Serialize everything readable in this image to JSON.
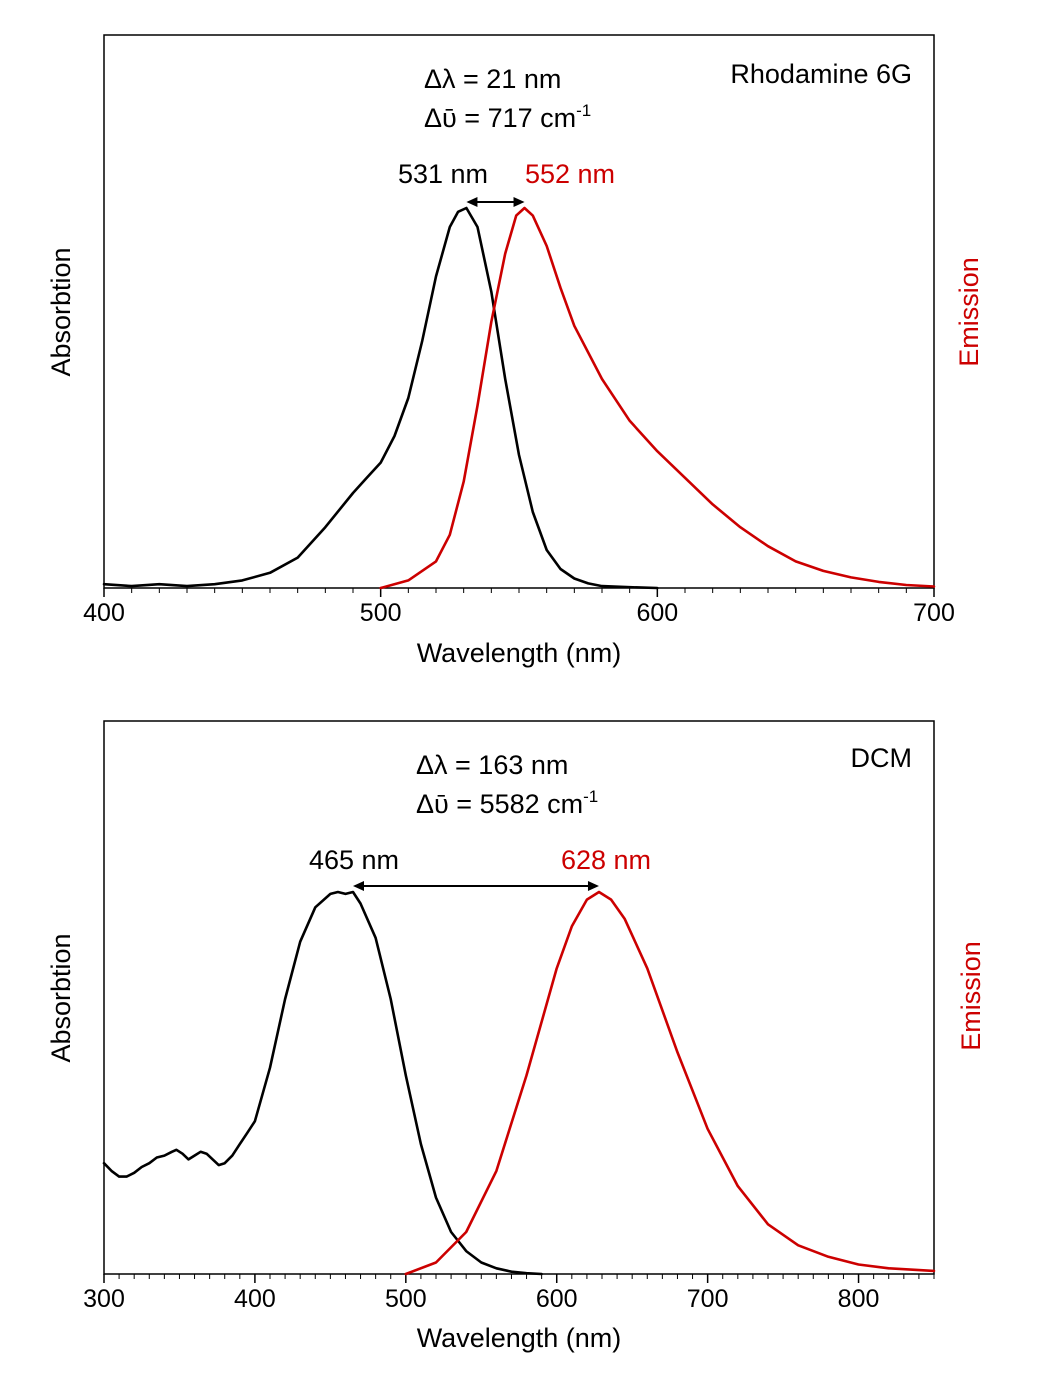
{
  "colors": {
    "absorption": "#000000",
    "emission": "#cc0000",
    "axis": "#000000"
  },
  "chart_data": [
    {
      "type": "line",
      "title": "",
      "sample_label": "Rhodamine 6G",
      "xlabel": "Wavelength (nm)",
      "ylabel_left": "Absorbtion",
      "ylabel_right": "Emission",
      "xlim": [
        400,
        700
      ],
      "ylim": [
        0,
        1
      ],
      "xticks": [
        400,
        500,
        600,
        700
      ],
      "y_scale": "arbitrary units, no tick labels",
      "grid": false,
      "annotation": {
        "delta_lambda": "Δλ = 21 nm",
        "delta_nu_prefix": "Δῡ = 717 cm",
        "delta_nu_exp": "-1"
      },
      "peaks": [
        {
          "label": "531 nm",
          "x": 531,
          "series": "absorption"
        },
        {
          "label": "552 nm",
          "x": 552,
          "series": "emission"
        }
      ],
      "series": [
        {
          "key": "absorption",
          "color": "#000000",
          "x": [
            400,
            410,
            420,
            430,
            440,
            450,
            460,
            470,
            480,
            490,
            495,
            500,
            505,
            510,
            515,
            520,
            525,
            528,
            531,
            535,
            540,
            545,
            550,
            555,
            560,
            565,
            570,
            575,
            580,
            590,
            600
          ],
          "y": [
            0.01,
            0.005,
            0.01,
            0.005,
            0.01,
            0.02,
            0.04,
            0.08,
            0.16,
            0.25,
            0.29,
            0.33,
            0.4,
            0.5,
            0.65,
            0.82,
            0.95,
            0.99,
            1.0,
            0.95,
            0.78,
            0.55,
            0.35,
            0.2,
            0.1,
            0.05,
            0.025,
            0.012,
            0.005,
            0.002,
            0.0
          ]
        },
        {
          "key": "emission",
          "color": "#cc0000",
          "x": [
            500,
            510,
            520,
            525,
            530,
            535,
            540,
            545,
            549,
            552,
            555,
            560,
            565,
            570,
            580,
            590,
            600,
            610,
            620,
            630,
            640,
            650,
            660,
            670,
            680,
            690,
            700
          ],
          "y": [
            0.0,
            0.02,
            0.07,
            0.14,
            0.28,
            0.48,
            0.7,
            0.88,
            0.98,
            1.0,
            0.98,
            0.9,
            0.79,
            0.69,
            0.55,
            0.44,
            0.36,
            0.29,
            0.22,
            0.16,
            0.11,
            0.07,
            0.045,
            0.028,
            0.016,
            0.008,
            0.004
          ]
        }
      ]
    },
    {
      "type": "line",
      "title": "",
      "sample_label": "DCM",
      "xlabel": "Wavelength (nm)",
      "ylabel_left": "Absorbtion",
      "ylabel_right": "Emission",
      "xlim": [
        300,
        850
      ],
      "ylim": [
        0,
        1
      ],
      "xticks": [
        300,
        400,
        500,
        600,
        700,
        800
      ],
      "y_scale": "arbitrary units, no tick labels",
      "grid": false,
      "annotation": {
        "delta_lambda": "Δλ = 163 nm",
        "delta_nu_prefix": "Δῡ = 5582 cm",
        "delta_nu_exp": "-1"
      },
      "peaks": [
        {
          "label": "465 nm",
          "x": 465,
          "series": "absorption"
        },
        {
          "label": "628 nm",
          "x": 628,
          "series": "emission"
        }
      ],
      "series": [
        {
          "key": "absorption",
          "color": "#000000",
          "x": [
            300,
            305,
            310,
            315,
            320,
            325,
            330,
            335,
            340,
            345,
            348,
            352,
            356,
            360,
            364,
            368,
            372,
            376,
            380,
            385,
            390,
            395,
            400,
            410,
            420,
            430,
            440,
            450,
            455,
            460,
            465,
            470,
            480,
            490,
            500,
            510,
            520,
            530,
            540,
            550,
            560,
            570,
            580,
            590
          ],
          "y": [
            0.29,
            0.27,
            0.255,
            0.255,
            0.265,
            0.28,
            0.29,
            0.305,
            0.31,
            0.32,
            0.325,
            0.315,
            0.3,
            0.31,
            0.32,
            0.315,
            0.3,
            0.285,
            0.29,
            0.31,
            0.34,
            0.37,
            0.4,
            0.54,
            0.72,
            0.87,
            0.96,
            0.995,
            1.0,
            0.995,
            1.0,
            0.97,
            0.88,
            0.72,
            0.52,
            0.34,
            0.2,
            0.11,
            0.06,
            0.03,
            0.015,
            0.006,
            0.002,
            0.0
          ]
        },
        {
          "key": "emission",
          "color": "#cc0000",
          "x": [
            500,
            520,
            540,
            560,
            580,
            600,
            610,
            620,
            628,
            636,
            645,
            660,
            680,
            700,
            720,
            740,
            760,
            780,
            800,
            820,
            850
          ],
          "y": [
            0.0,
            0.03,
            0.11,
            0.27,
            0.52,
            0.8,
            0.91,
            0.98,
            1.0,
            0.98,
            0.93,
            0.8,
            0.58,
            0.38,
            0.23,
            0.13,
            0.075,
            0.045,
            0.025,
            0.015,
            0.008
          ]
        }
      ]
    }
  ]
}
